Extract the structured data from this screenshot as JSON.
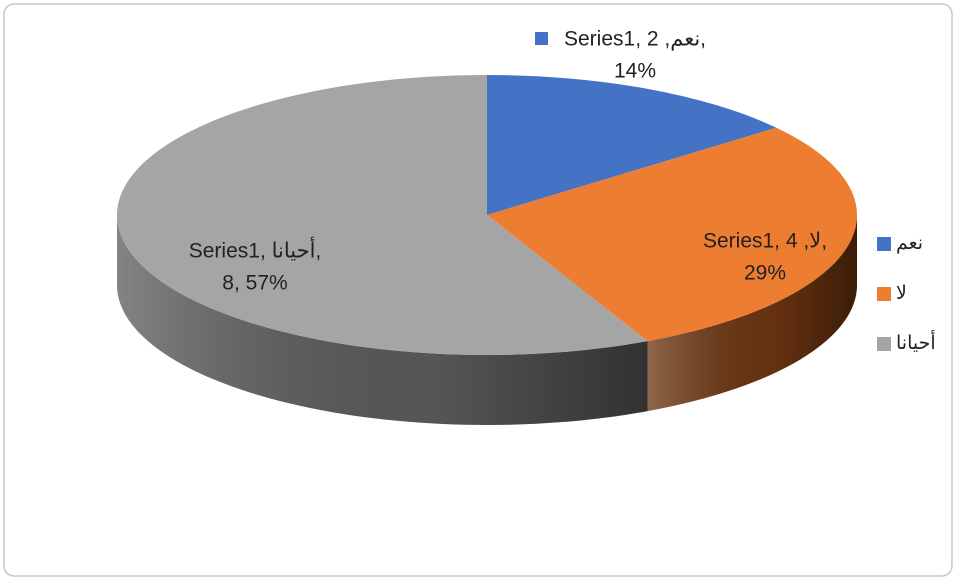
{
  "chart_data": {
    "type": "pie3d",
    "series_name": "Series1",
    "categories": [
      "نعم",
      "لا",
      "أحيانا"
    ],
    "values": [
      2,
      4,
      8
    ],
    "colors": [
      "#4472c4",
      "#ed7d31",
      "#a5a5a5"
    ],
    "side_colors": [
      "#2f528f",
      "#6b3410",
      "#5a5a5a"
    ],
    "value_labels": [
      [
        "Series1, نعم, 2,",
        "14%"
      ],
      [
        "Series1, لا, 4,",
        "29%"
      ],
      [
        "Series1, أحيانا,",
        "8, 57%"
      ]
    ],
    "legend": "right"
  }
}
